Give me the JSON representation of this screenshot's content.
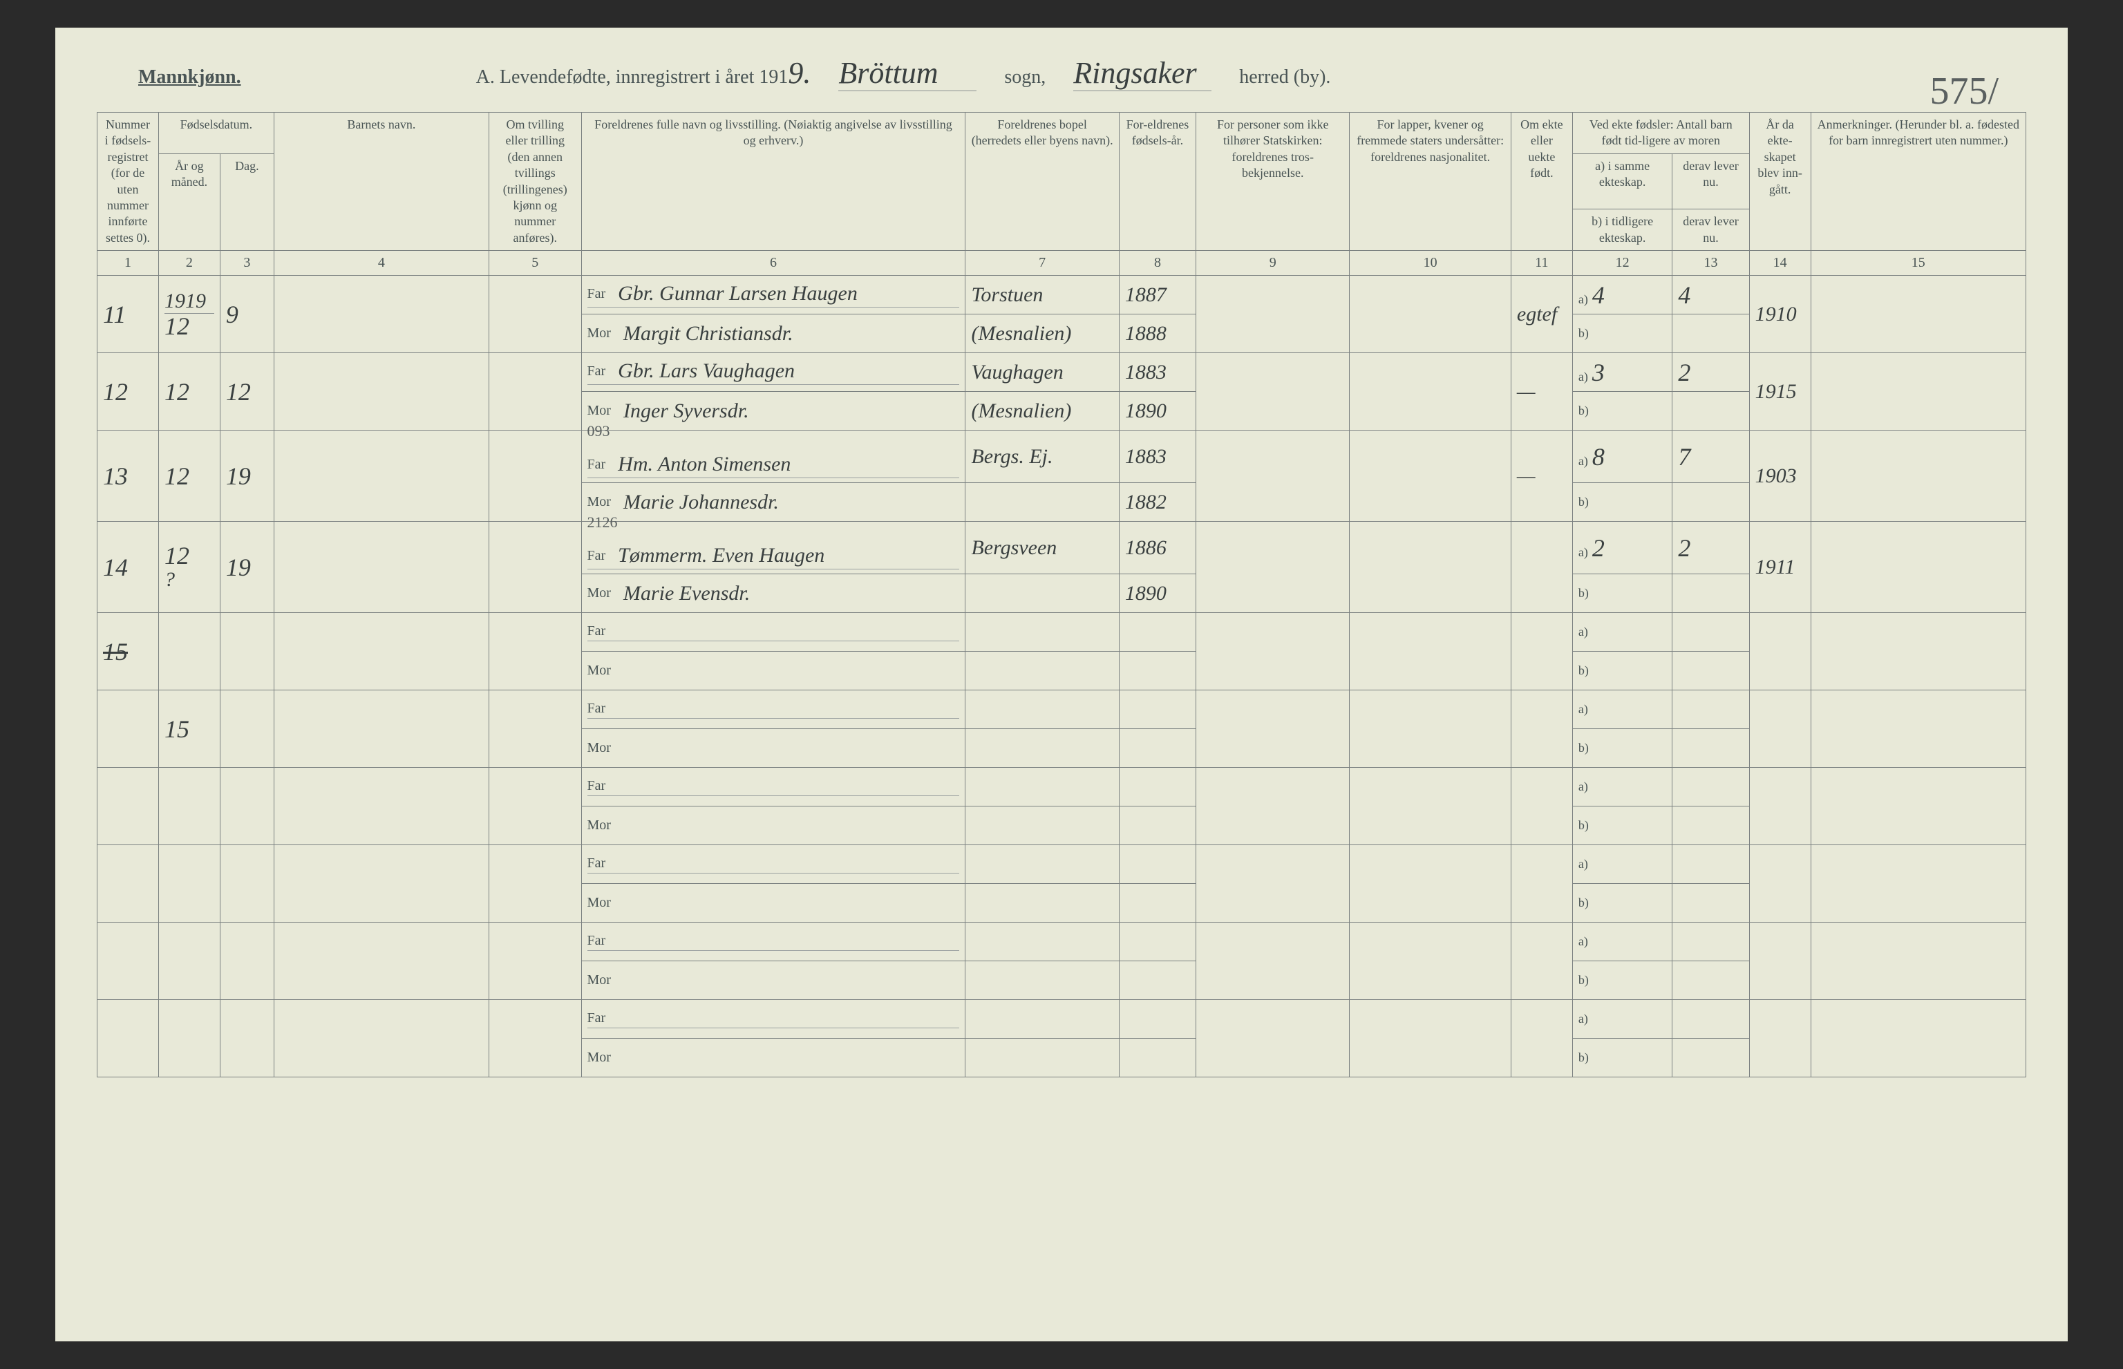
{
  "header": {
    "gender_label": "Mannkjønn.",
    "title_prefix": "A.  Levendefødte, innregistrert i året 191",
    "year_suffix": "9.",
    "sogn_value": "Bröttum",
    "sogn_label": "sogn,",
    "herred_value": "Ringsaker",
    "herred_label": "herred (by).",
    "page_number": "575/"
  },
  "columns": {
    "c1": "Nummer i fødsels-registret (for de uten nummer innførte settes 0).",
    "c2_group": "Fødselsdatum.",
    "c2": "År og måned.",
    "c3": "Dag.",
    "c4": "Barnets navn.",
    "c5": "Om tvilling eller trilling (den annen tvillings (trillingenes) kjønn og nummer anføres).",
    "c6": "Foreldrenes fulle navn og livsstilling. (Nøiaktig angivelse av livsstilling og erhverv.)",
    "c7": "Foreldrenes bopel (herredets eller byens navn).",
    "c8": "For-eldrenes fødsels-år.",
    "c9": "For personer som ikke tilhører Statskirken: foreldrenes tros-bekjennelse.",
    "c10": "For lapper, kvener og fremmede staters undersåtter: foreldrenes nasjonalitet.",
    "c11": "Om ekte eller uekte født.",
    "c12_top": "Ved ekte fødsler: Antall barn født tid-ligere av moren",
    "c12a": "a) i samme ekteskap.",
    "c12b": "b) i tidligere ekteskap.",
    "c13a": "derav lever nu.",
    "c13b": "derav lever nu.",
    "c14": "År da ekte-skapet blev inn-gått.",
    "c15": "Anmerkninger. (Herunder bl. a. fødested for barn innregistrert uten nummer.)"
  },
  "colnums": [
    "1",
    "2",
    "3",
    "4",
    "5",
    "6",
    "7",
    "8",
    "9",
    "10",
    "11",
    "12",
    "13",
    "14",
    "15"
  ],
  "far_label": "Far",
  "mor_label": "Mor",
  "a_label": "a)",
  "b_label": "b)",
  "rows": [
    {
      "num": "11",
      "year_top": "1919",
      "year": "12",
      "day": "9",
      "far": "Gbr. Gunnar Larsen Haugen",
      "mor": "Margit Christiansdr.",
      "residence_far": "Torstuen",
      "residence_mor": "(Mesnalien)",
      "birthyear_far": "1887",
      "birthyear_mor": "1888",
      "legit": "egtef",
      "c12a": "4",
      "c13a": "4",
      "c14": "1910"
    },
    {
      "num": "12",
      "year": "12",
      "day": "12",
      "far": "Gbr. Lars Vaughagen",
      "mor": "Inger Syversdr.",
      "residence_far": "Vaughagen",
      "residence_mor": "(Mesnalien)",
      "birthyear_far": "1883",
      "birthyear_mor": "1890",
      "legit": "—",
      "c12a": "3",
      "c13a": "2",
      "c14": "1915"
    },
    {
      "num": "13",
      "year": "12",
      "day": "19",
      "far_note": "093",
      "far": "Hm. Anton Simensen",
      "mor": "Marie Johannesdr.",
      "residence_far": "Bergs. Ej.",
      "residence_mor": "",
      "birthyear_far": "1883",
      "birthyear_mor": "1882",
      "legit": "—",
      "c12a": "8",
      "c13a": "7",
      "c14": "1903"
    },
    {
      "num": "14",
      "year": "12",
      "year_sub": "?",
      "day": "19",
      "far_note": "2126",
      "far": "Tømmerm. Even Haugen",
      "mor": "Marie Evensdr.",
      "residence_far": "Bergsveen",
      "residence_mor": "",
      "birthyear_far": "1886",
      "birthyear_mor": "1890",
      "legit": "",
      "c12a": "2",
      "c13a": "2",
      "c14": "1911"
    },
    {
      "num_struck": "15",
      "year": "",
      "day": "",
      "far": "",
      "mor": "",
      "residence_far": "",
      "residence_mor": "",
      "birthyear_far": "",
      "birthyear_mor": "",
      "legit": "",
      "c12a": "",
      "c13a": "",
      "c14": ""
    },
    {
      "num": "",
      "year": "15",
      "day": "",
      "far": "",
      "mor": "",
      "residence_far": "",
      "residence_mor": "",
      "birthyear_far": "",
      "birthyear_mor": "",
      "legit": "",
      "c12a": "",
      "c13a": "",
      "c14": ""
    },
    {
      "empty": true
    },
    {
      "empty": true
    },
    {
      "empty": true
    },
    {
      "empty": true
    }
  ],
  "styling": {
    "page_bg": "#e8e9d8",
    "border_color": "#7a8080",
    "text_color": "#4a5555",
    "handwriting_color": "#3a4040",
    "header_fontsize": 28,
    "th_fontsize": 18,
    "handwriting_fontsize": 36
  }
}
